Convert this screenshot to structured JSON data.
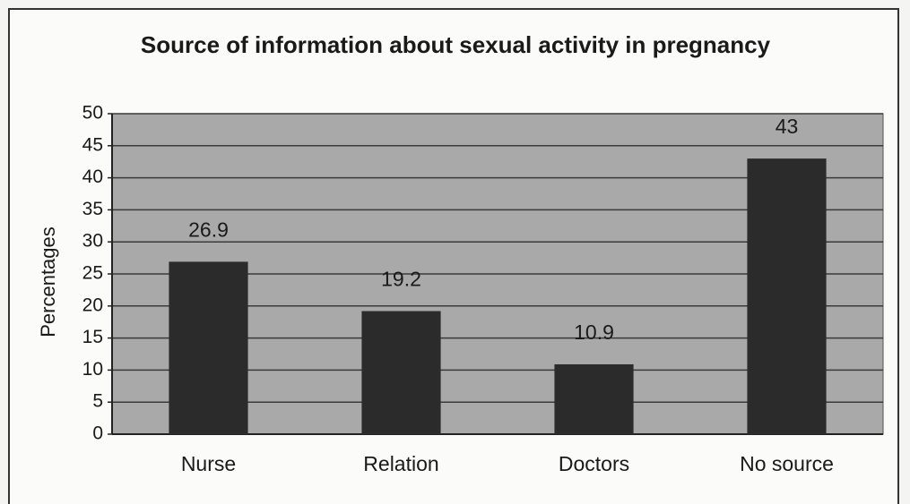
{
  "chart_data": {
    "type": "bar",
    "title": "Source of information about sexual activity in pregnancy",
    "y_label": "Percentages",
    "categories": [
      "Nurse",
      "Relation",
      "Doctors",
      "No source"
    ],
    "values": [
      26.9,
      19.2,
      10.9,
      43
    ],
    "color": "#2b2b2b",
    "ylim": [
      0,
      50
    ],
    "yticks": [
      0,
      5,
      10,
      15,
      20,
      25,
      30,
      35,
      40,
      45,
      50
    ],
    "grid": true
  }
}
